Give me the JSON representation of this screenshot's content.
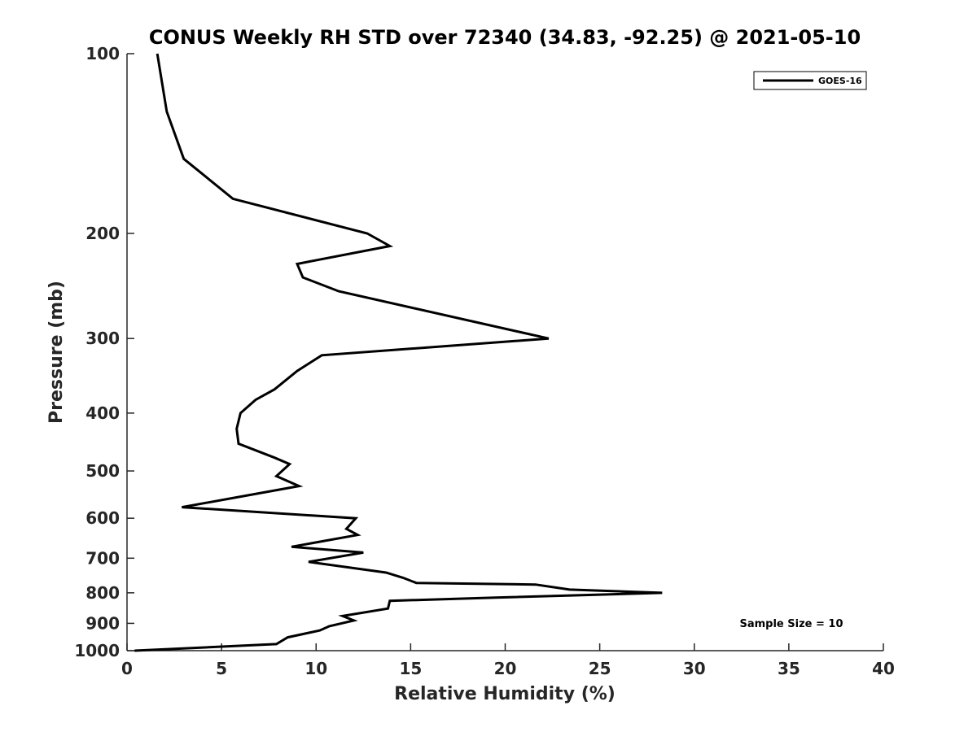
{
  "chart_data": {
    "type": "line",
    "title": "CONUS Weekly RH STD over 72340 (34.83, -92.25) @ 2021-05-10",
    "xlabel": "Relative Humidity (%)",
    "ylabel": "Pressure (mb)",
    "xlim": [
      0,
      40
    ],
    "ylim": [
      100,
      1000
    ],
    "y_scale": "log",
    "y_reversed": true,
    "xticks": [
      0,
      5,
      10,
      15,
      20,
      25,
      30,
      35,
      40
    ],
    "xtick_labels": [
      "0",
      "5",
      "10",
      "15",
      "20",
      "25",
      "30",
      "35",
      "40"
    ],
    "yticks": [
      100,
      200,
      300,
      400,
      500,
      600,
      700,
      800,
      900,
      1000
    ],
    "ytick_labels": [
      "100",
      "200",
      "300",
      "400",
      "500",
      "600",
      "700",
      "800",
      "900",
      "1000"
    ],
    "grid": false,
    "legend_position": "top-right",
    "line_color": "#000000",
    "annotation": "Sample Size = 10",
    "series": [
      {
        "name": "GOES-16",
        "points": [
          [
            1.6,
            100
          ],
          [
            2.1,
            125
          ],
          [
            3.0,
            150
          ],
          [
            5.6,
            175
          ],
          [
            12.7,
            200
          ],
          [
            13.9,
            210
          ],
          [
            9.0,
            225
          ],
          [
            9.3,
            237
          ],
          [
            11.2,
            250
          ],
          [
            22.3,
            300
          ],
          [
            10.3,
            320
          ],
          [
            9.0,
            340
          ],
          [
            7.8,
            365
          ],
          [
            6.8,
            380
          ],
          [
            6.0,
            400
          ],
          [
            5.8,
            425
          ],
          [
            5.9,
            450
          ],
          [
            7.8,
            475
          ],
          [
            8.6,
            487
          ],
          [
            7.9,
            510
          ],
          [
            9.1,
            530
          ],
          [
            6.3,
            550
          ],
          [
            2.9,
            575
          ],
          [
            12.1,
            600
          ],
          [
            11.6,
            625
          ],
          [
            12.2,
            640
          ],
          [
            8.7,
            670
          ],
          [
            12.5,
            685
          ],
          [
            9.6,
            710
          ],
          [
            13.7,
            740
          ],
          [
            14.6,
            755
          ],
          [
            15.3,
            770
          ],
          [
            21.6,
            775
          ],
          [
            23.4,
            790
          ],
          [
            28.3,
            800
          ],
          [
            19.5,
            815
          ],
          [
            13.9,
            825
          ],
          [
            13.8,
            850
          ],
          [
            11.4,
            875
          ],
          [
            12.0,
            890
          ],
          [
            10.7,
            910
          ],
          [
            10.2,
            925
          ],
          [
            8.5,
            950
          ],
          [
            7.9,
            975
          ],
          [
            0.4,
            1000
          ]
        ]
      }
    ]
  }
}
